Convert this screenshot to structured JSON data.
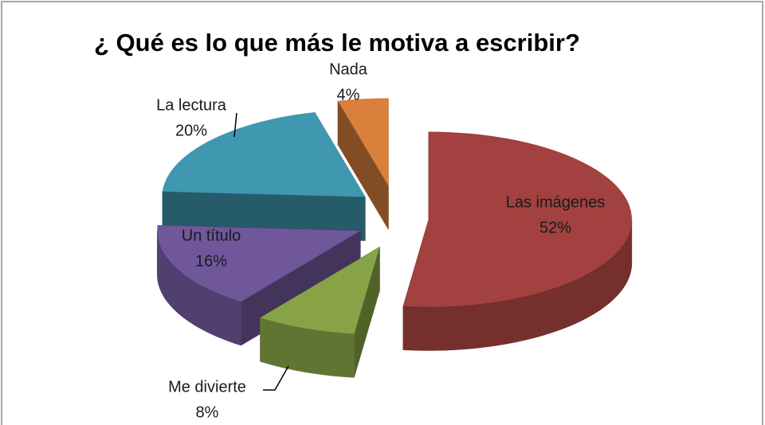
{
  "chart_data": {
    "type": "pie3d",
    "title": "¿ Qué es lo que más le motiva a escribir?",
    "categories": [
      "Las imágenes",
      "Me divierte",
      "Un título",
      "La lectura",
      "Nada"
    ],
    "values": [
      52,
      8,
      16,
      20,
      4
    ],
    "value_labels": [
      "52%",
      "8%",
      "16%",
      "20%",
      "4%"
    ],
    "colors": [
      "#a2413f",
      "#87a345",
      "#70579a",
      "#3f97b0",
      "#d8803c"
    ]
  }
}
